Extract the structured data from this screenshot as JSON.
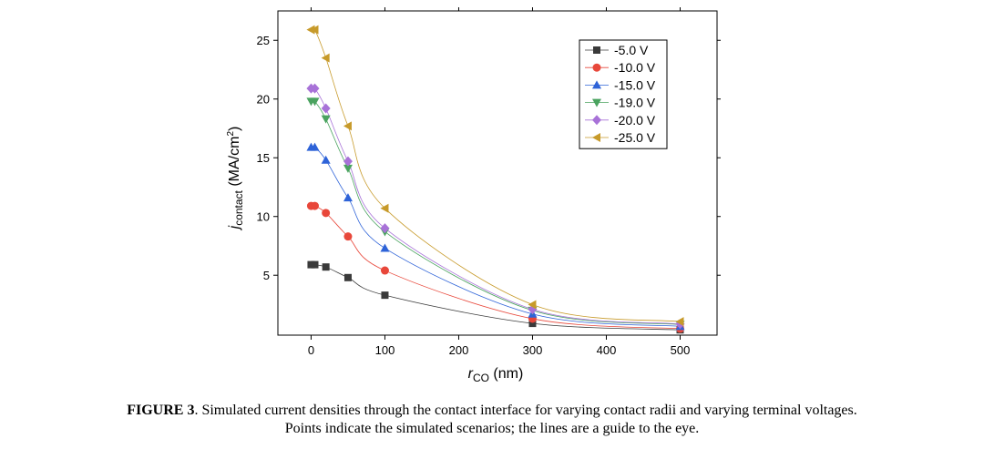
{
  "chart_data": {
    "type": "scatter",
    "xlabel_main": "r",
    "xlabel_sub": "CO",
    "xlabel_unit": " (nm)",
    "ylabel_main": "j",
    "ylabel_sub": "contact",
    "ylabel_unit": " (MA/cm",
    "ylabel_sup": "2",
    "ylabel_close": ")",
    "xlim": [
      -45,
      550
    ],
    "ylim": [
      -0.1,
      27.5
    ],
    "xticks": [
      0,
      100,
      200,
      300,
      400,
      500
    ],
    "yticks": [
      5,
      10,
      15,
      20,
      25
    ],
    "legend_position": "top-right",
    "x": [
      0,
      5,
      20,
      50,
      100,
      300,
      500
    ],
    "series": [
      {
        "name": "-5.0 V",
        "color": "#3a3a3a",
        "marker": "square",
        "values": [
          5.9,
          5.9,
          5.7,
          4.8,
          3.3,
          0.9,
          0.35
        ]
      },
      {
        "name": "-10.0 V",
        "color": "#e8473a",
        "marker": "circle",
        "values": [
          10.9,
          10.9,
          10.3,
          8.3,
          5.4,
          1.3,
          0.45
        ]
      },
      {
        "name": "-15.0 V",
        "color": "#2e63d8",
        "marker": "triangle-up",
        "values": [
          15.9,
          15.9,
          14.8,
          11.6,
          7.3,
          1.7,
          0.65
        ]
      },
      {
        "name": "-19.0 V",
        "color": "#4aa35f",
        "marker": "triangle-down",
        "values": [
          19.8,
          19.8,
          18.3,
          14.1,
          8.7,
          2.0,
          0.8
        ]
      },
      {
        "name": "-20.0 V",
        "color": "#a872d8",
        "marker": "diamond",
        "values": [
          20.9,
          20.9,
          19.2,
          14.7,
          9.0,
          2.1,
          0.85
        ]
      },
      {
        "name": "-25.0 V",
        "color": "#c79a2a",
        "marker": "triangle-left",
        "values": [
          25.9,
          25.9,
          23.5,
          17.7,
          10.7,
          2.5,
          1.05
        ]
      }
    ]
  },
  "caption": {
    "label": "FIGURE 3",
    "line1": ". Simulated current densities through the contact interface for varying contact radii and varying terminal voltages.",
    "line2": "Points indicate the simulated scenarios; the lines are a guide to the eye."
  }
}
